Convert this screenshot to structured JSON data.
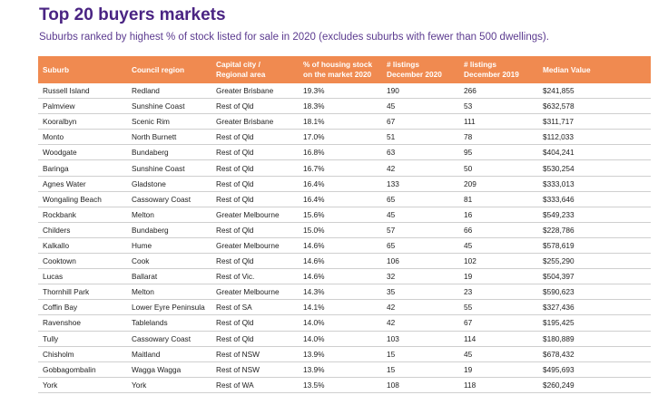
{
  "header": {
    "title": "Top 20 buyers markets",
    "subtitle": "Suburbs ranked by highest % of stock listed for sale in 2020 (excludes suburbs with fewer than 500 dwellings)."
  },
  "table": {
    "columns": [
      [
        "Suburb"
      ],
      [
        "Council region"
      ],
      [
        "Capital city /",
        "Regional area"
      ],
      [
        "% of housing stock",
        "on the market 2020"
      ],
      [
        "#  listings",
        "December 2020"
      ],
      [
        "# listings",
        "December 2019"
      ],
      [
        "Median Value"
      ]
    ],
    "rows": [
      [
        "Russell Island",
        "Redland",
        "Greater Brisbane",
        "19.3%",
        "190",
        "266",
        "$241,855"
      ],
      [
        "Palmview",
        "Sunshine Coast",
        "Rest of Qld",
        "18.3%",
        "45",
        "53",
        "$632,578"
      ],
      [
        "Kooralbyn",
        "Scenic Rim",
        "Greater Brisbane",
        "18.1%",
        "67",
        "111",
        "$311,717"
      ],
      [
        "Monto",
        "North Burnett",
        "Rest of Qld",
        "17.0%",
        "51",
        "78",
        "$112,033"
      ],
      [
        "Woodgate",
        "Bundaberg",
        "Rest of Qld",
        "16.8%",
        "63",
        "95",
        "$404,241"
      ],
      [
        "Baringa",
        "Sunshine Coast",
        "Rest of Qld",
        "16.7%",
        "42",
        "50",
        "$530,254"
      ],
      [
        "Agnes Water",
        "Gladstone",
        "Rest of Qld",
        "16.4%",
        "133",
        "209",
        "$333,013"
      ],
      [
        "Wongaling Beach",
        "Cassowary Coast",
        "Rest of Qld",
        "16.4%",
        "65",
        "81",
        "$333,646"
      ],
      [
        "Rockbank",
        "Melton",
        "Greater Melbourne",
        "15.6%",
        "45",
        "16",
        "$549,233"
      ],
      [
        "Childers",
        "Bundaberg",
        "Rest of Qld",
        "15.0%",
        "57",
        "66",
        "$228,786"
      ],
      [
        "Kalkallo",
        "Hume",
        "Greater Melbourne",
        "14.6%",
        "65",
        "45",
        "$578,619"
      ],
      [
        "Cooktown",
        "Cook",
        "Rest of Qld",
        "14.6%",
        "106",
        "102",
        "$255,290"
      ],
      [
        "Lucas",
        "Ballarat",
        "Rest of Vic.",
        "14.6%",
        "32",
        "19",
        "$504,397"
      ],
      [
        "Thornhill Park",
        "Melton",
        "Greater Melbourne",
        "14.3%",
        "35",
        "23",
        "$590,623"
      ],
      [
        "Coffin Bay",
        "Lower Eyre Peninsula",
        "Rest of SA",
        "14.1%",
        "42",
        "55",
        "$327,436"
      ],
      [
        "Ravenshoe",
        "Tablelands",
        "Rest of Qld",
        "14.0%",
        "42",
        "67",
        "$195,425"
      ],
      [
        "Tully",
        "Cassowary Coast",
        "Rest of Qld",
        "14.0%",
        "103",
        "114",
        "$180,889"
      ],
      [
        "Chisholm",
        "Maitland",
        "Rest of NSW",
        "13.9%",
        "15",
        "45",
        "$678,432"
      ],
      [
        "Gobbagombalin",
        "Wagga Wagga",
        "Rest of NSW",
        "13.9%",
        "15",
        "19",
        "$495,693"
      ],
      [
        "York",
        "York",
        "Rest of WA",
        "13.5%",
        "108",
        "118",
        "$260,249"
      ]
    ]
  }
}
